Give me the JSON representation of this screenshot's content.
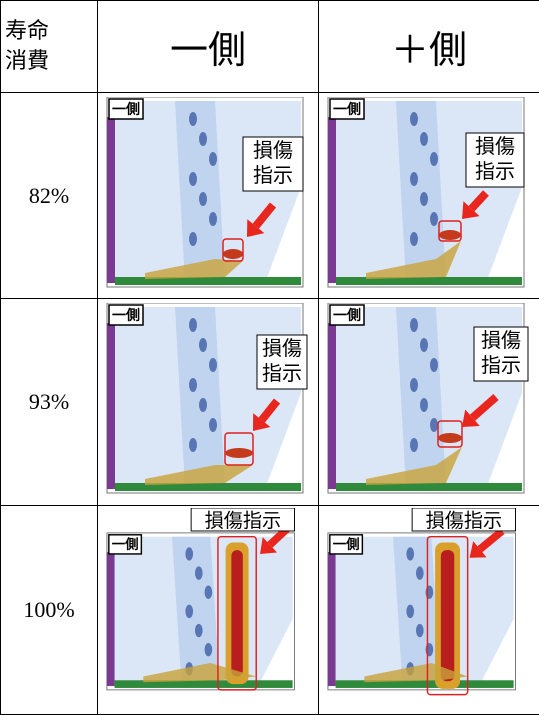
{
  "header": {
    "cells": [
      [
        "寿命",
        "消費"
      ],
      [
        "一側"
      ],
      [
        "＋側"
      ]
    ]
  },
  "rows": [
    {
      "label": "82%",
      "images": [
        {
          "tag": "一側",
          "note": [
            "損傷",
            "指示"
          ]
        },
        {
          "tag": "一側",
          "note": [
            "損傷",
            "指示"
          ]
        }
      ]
    },
    {
      "label": "93%",
      "images": [
        {
          "tag": "一側",
          "note": [
            "損傷",
            "指示"
          ]
        },
        {
          "tag": "一側",
          "note": [
            "損傷",
            "指示"
          ]
        }
      ]
    },
    {
      "label": "100%",
      "images": [
        {
          "tag": "一側",
          "note": [
            "損傷指示"
          ]
        },
        {
          "tag": "一側",
          "note": [
            "損傷指示"
          ]
        }
      ]
    }
  ]
}
